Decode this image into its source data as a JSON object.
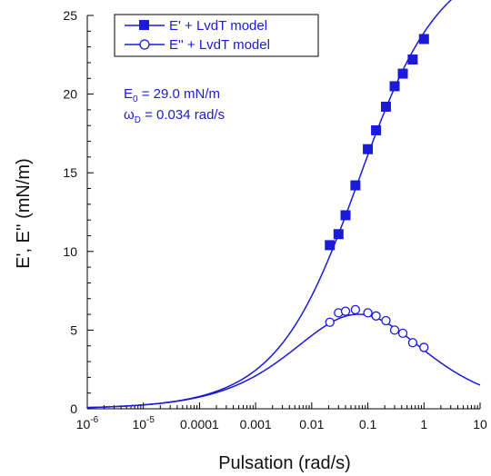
{
  "chart_data": {
    "type": "scatter",
    "x_scale": "log",
    "xlabel": "Pulsation  (rad/s)",
    "ylabel": "E', E''  (mN/m)",
    "xlim": [
      1e-06,
      10
    ],
    "ylim": [
      0,
      25
    ],
    "x_ticks": [
      {
        "value": 1e-06,
        "base": "10",
        "exp": "-6"
      },
      {
        "value": 1e-05,
        "base": "10",
        "exp": "-5"
      },
      {
        "value": 0.0001,
        "label": "0.0001"
      },
      {
        "value": 0.001,
        "label": "0.001"
      },
      {
        "value": 0.01,
        "label": "0.01"
      },
      {
        "value": 0.1,
        "label": "0.1"
      },
      {
        "value": 1,
        "label": "1"
      },
      {
        "value": 10,
        "label": "10"
      }
    ],
    "y_ticks": [
      0,
      5,
      10,
      15,
      20,
      25
    ],
    "grid": false,
    "legend_position": "top-left",
    "colors": {
      "series": "#1a1ad8",
      "axis": "#000000"
    },
    "series": [
      {
        "name": "E' + LvdT model",
        "marker": "filled-square",
        "x": [
          0.021,
          0.03,
          0.04,
          0.06,
          0.1,
          0.14,
          0.21,
          0.3,
          0.42,
          0.63,
          1.0
        ],
        "y": [
          10.4,
          11.1,
          12.3,
          14.2,
          16.5,
          17.7,
          19.2,
          20.5,
          21.3,
          22.2,
          23.5
        ]
      },
      {
        "name": "E'' + LvdT model",
        "marker": "open-circle",
        "x": [
          0.021,
          0.03,
          0.04,
          0.06,
          0.1,
          0.14,
          0.21,
          0.3,
          0.42,
          0.63,
          1.0
        ],
        "y": [
          5.5,
          6.1,
          6.2,
          6.3,
          6.1,
          5.9,
          5.6,
          5.0,
          4.8,
          4.2,
          3.9
        ]
      }
    ],
    "model": {
      "E0": 29.0,
      "omegaD": 0.034
    },
    "annotation": {
      "e0_main": "E",
      "e0_sub": "0",
      "e0_value": " = 29.0 mN/m",
      "wd_main": "ω",
      "wd_sub": "D",
      "wd_value": " = 0.034 rad/s"
    }
  }
}
